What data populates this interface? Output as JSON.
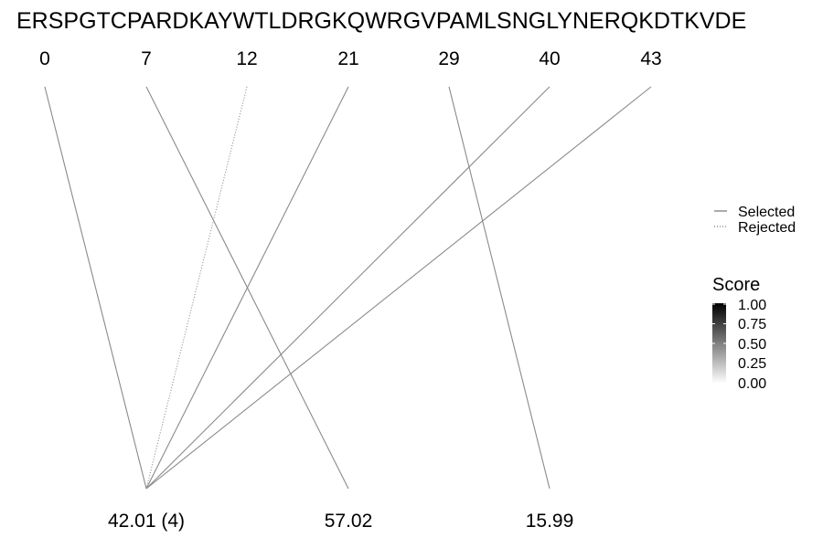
{
  "sequence": "ERSPGTCPARDKAYWTLDRGKQWRGVPAMLSNGLYNERQKDTKVDE",
  "positions": [
    "0",
    "7",
    "12",
    "21",
    "29",
    "40",
    "43"
  ],
  "masses": [
    "42.01 (4)",
    "57.02",
    "15.99"
  ],
  "links": [
    {
      "from": 0,
      "to": 0,
      "status": "selected"
    },
    {
      "from": 1,
      "to": 1,
      "status": "selected"
    },
    {
      "from": 2,
      "to": 0,
      "status": "rejected"
    },
    {
      "from": 3,
      "to": 0,
      "status": "selected"
    },
    {
      "from": 4,
      "to": 2,
      "status": "selected"
    },
    {
      "from": 5,
      "to": 0,
      "status": "selected"
    },
    {
      "from": 6,
      "to": 0,
      "status": "selected"
    }
  ],
  "legend": {
    "selected_label": "Selected",
    "rejected_label": "Rejected"
  },
  "score_scale": {
    "title": "Score",
    "ticks": [
      "1.00",
      "0.75",
      "0.50",
      "0.25",
      "0.00"
    ],
    "color_high": "#000000",
    "color_low": "#ffffff"
  },
  "colors": {
    "line": "#8a8a8a"
  }
}
